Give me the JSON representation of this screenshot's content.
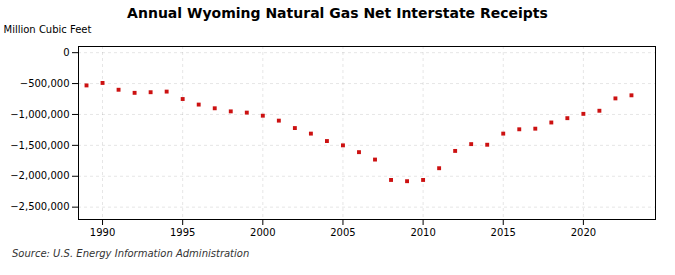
{
  "chart_data": {
    "type": "scatter",
    "title": "Annual Wyoming Natural Gas Net Interstate Receipts",
    "ylabel": "Million Cubic Feet",
    "annotations": [
      "Source: U.S. Energy Information Administration"
    ],
    "x": [
      1989,
      1990,
      1991,
      1992,
      1993,
      1994,
      1995,
      1996,
      1997,
      1998,
      1999,
      2000,
      2001,
      2002,
      2003,
      2004,
      2005,
      2006,
      2007,
      2008,
      2009,
      2010,
      2011,
      2012,
      2013,
      2014,
      2015,
      2016,
      2017,
      2018,
      2019,
      2020,
      2021,
      2022,
      2023
    ],
    "values": [
      -530000,
      -490000,
      -600000,
      -650000,
      -640000,
      -630000,
      -750000,
      -840000,
      -900000,
      -950000,
      -970000,
      -1020000,
      -1100000,
      -1220000,
      -1310000,
      -1430000,
      -1500000,
      -1610000,
      -1730000,
      -2060000,
      -2080000,
      -2060000,
      -1870000,
      -1590000,
      -1480000,
      -1490000,
      -1310000,
      -1240000,
      -1230000,
      -1130000,
      -1060000,
      -990000,
      -940000,
      -740000,
      -690000
    ],
    "color": "#cc1111",
    "marker": "square",
    "xlim": [
      1988.5,
      2024.5
    ],
    "xticks": [
      1990,
      1995,
      2000,
      2005,
      2010,
      2015,
      2020
    ],
    "ylim": [
      -2700000,
      100000
    ],
    "yticks": [
      0,
      {
        "value": -500000,
        "label": "−500,000"
      },
      {
        "value": -1000000,
        "label": "−1,000,000"
      },
      {
        "value": -1500000,
        "label": "−1,500,000"
      },
      {
        "value": -2000000,
        "label": "−2,000,000"
      },
      {
        "value": -2500000,
        "label": "−2,500,000"
      }
    ],
    "grid": true
  }
}
